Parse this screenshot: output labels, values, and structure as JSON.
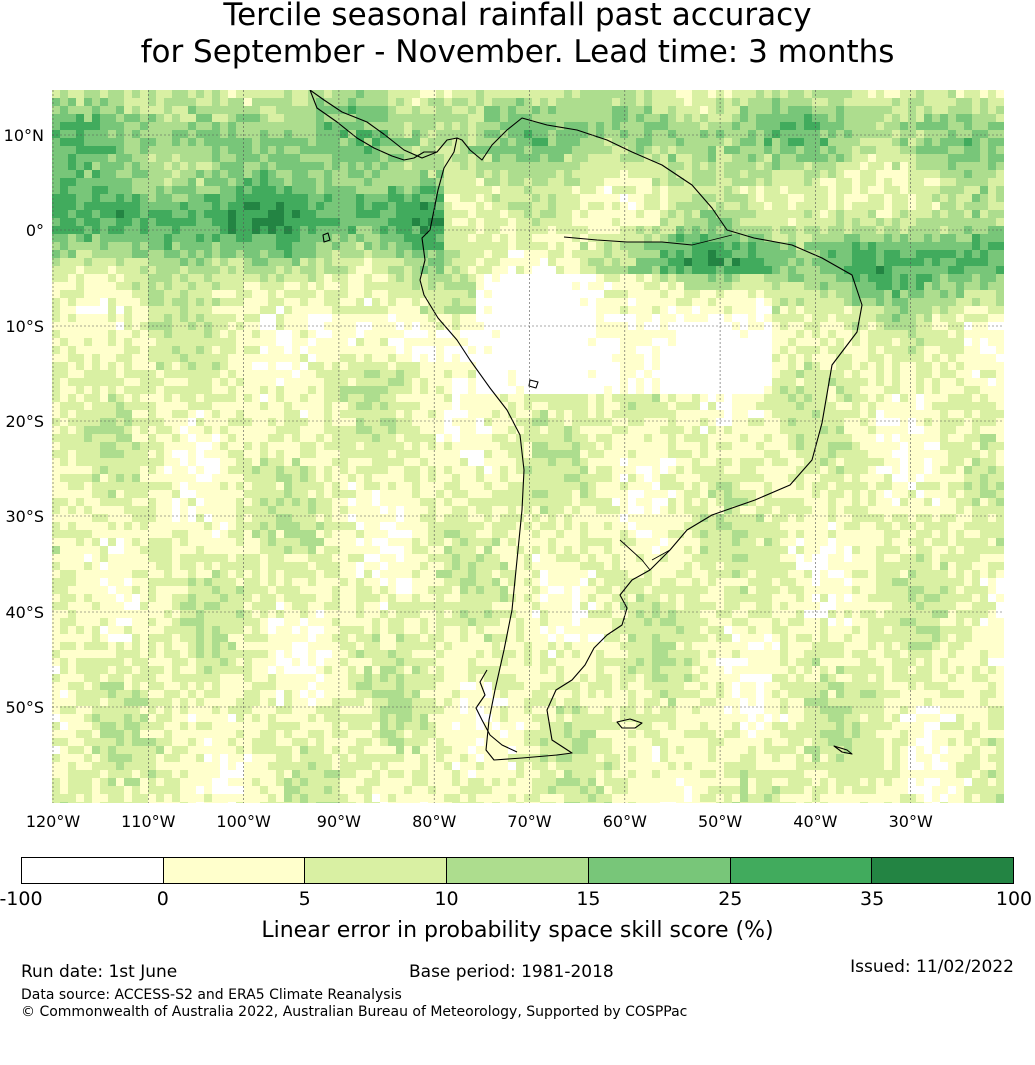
{
  "title_line1": "Tercile seasonal rainfall past accuracy",
  "title_line2": "for September - November. Lead time: 3 months",
  "lat_labels": [
    "10°N",
    "0°",
    "10°S",
    "20°S",
    "30°S",
    "40°S",
    "50°S"
  ],
  "lon_labels": [
    "120°W",
    "110°W",
    "100°W",
    "90°W",
    "80°W",
    "70°W",
    "60°W",
    "50°W",
    "40°W",
    "30°W"
  ],
  "colorbar": {
    "ticks": [
      "-100",
      "0",
      "5",
      "10",
      "15",
      "25",
      "35",
      "100"
    ],
    "colors": [
      "#ffffff",
      "#ffffcc",
      "#d9f0a3",
      "#addd8e",
      "#78c679",
      "#41ab5d",
      "#238443"
    ],
    "label": "Linear error in probability space skill score (%)"
  },
  "footer": {
    "run_date": "Run date: 1st June",
    "base_period": "Base period: 1981-2018",
    "issued": "Issued: 11/02/2022",
    "data_source": "Data source: ACCESS-S2 and ERA5 Climate Reanalysis",
    "copyright": "© Commonwealth of Australia 2022, Australian Bureau of Meteorology, Supported by COSPPac"
  }
}
